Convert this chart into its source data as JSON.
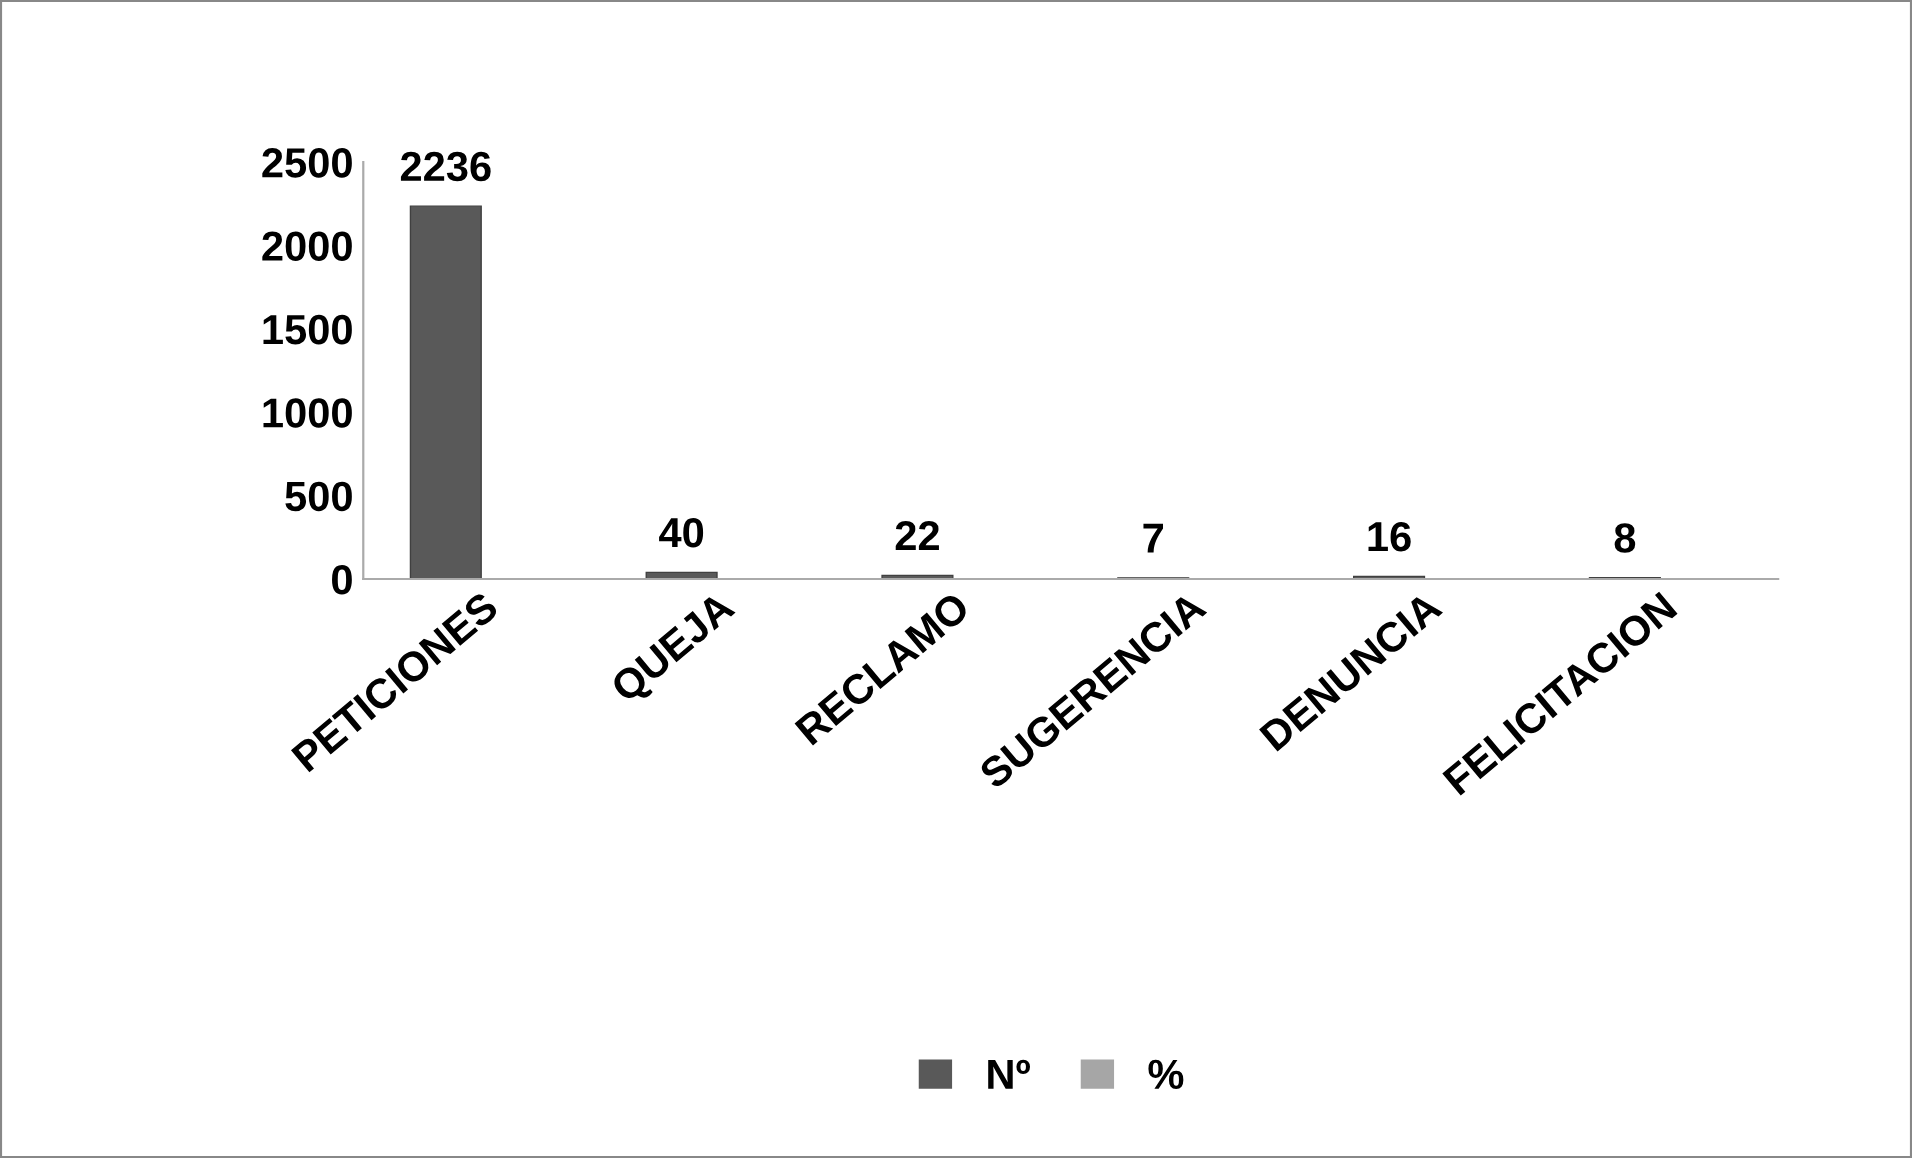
{
  "chart_data": {
    "type": "bar",
    "categories": [
      "PETICIONES",
      "QUEJA",
      "RECLAMO",
      "SUGERENCIA",
      "DENUNCIA",
      "FELICITACION"
    ],
    "series": [
      {
        "name": "Nº",
        "color": "#595959",
        "values": [
          2236,
          40,
          22,
          7,
          16,
          8
        ]
      },
      {
        "name": "%",
        "color": "#a6a6a6",
        "values": [
          null,
          null,
          null,
          null,
          null,
          null
        ]
      }
    ],
    "ylim": [
      0,
      2500
    ],
    "yticks": [
      0,
      500,
      1000,
      1500,
      2000,
      2500
    ],
    "grid": false,
    "legend": "bottom",
    "data_labels": true
  }
}
